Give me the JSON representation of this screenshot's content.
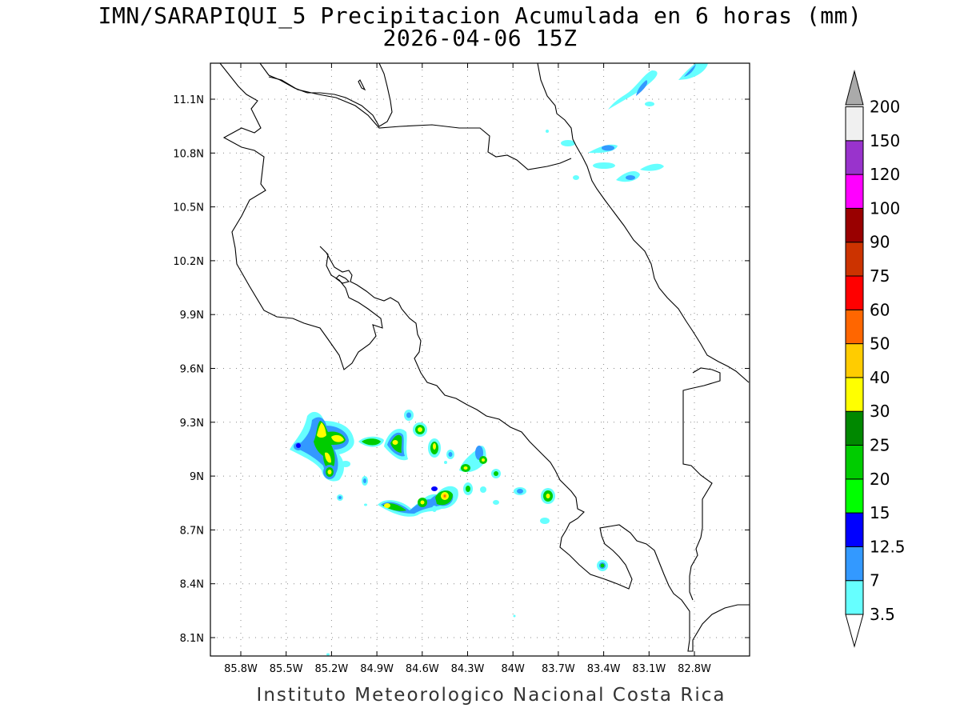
{
  "title_line1": "IMN/SARAPIQUI_5 Precipitacion Acumulada en 6 horas (mm)",
  "title_line2": "2026-04-06 15Z",
  "footer": "Instituto Meteorologico Nacional Costa Rica",
  "map": {
    "lon_range": [
      -86.0,
      -83.0
    ],
    "lat_range": [
      8.0,
      11.3
    ],
    "lon_ticks": [
      "85.8W",
      "85.5W",
      "85.2W",
      "84.9W",
      "84.6W",
      "84.3W",
      "84W",
      "83.7W",
      "83.4W",
      "83.1W",
      "82.8W"
    ],
    "lat_ticks": [
      "11.1N",
      "10.8N",
      "10.5N",
      "10.2N",
      "9.9N",
      "9.6N",
      "9.3N",
      "9N",
      "8.7N",
      "8.4N",
      "8.1N"
    ],
    "grid": "dotted"
  },
  "colorbar": {
    "labels": [
      "3.5",
      "7",
      "12.5",
      "15",
      "20",
      "25",
      "30",
      "40",
      "50",
      "60",
      "75",
      "90",
      "100",
      "120",
      "150",
      "200"
    ],
    "colors": [
      "#ffffff",
      "#66ffff",
      "#3399ff",
      "#0000ff",
      "#00ff00",
      "#00cc00",
      "#008800",
      "#ffff00",
      "#ffcc00",
      "#ff6600",
      "#ff0000",
      "#cc3300",
      "#990000",
      "#ff00ff",
      "#9933cc",
      "#f0f0f0",
      "#aaaaaa"
    ]
  }
}
